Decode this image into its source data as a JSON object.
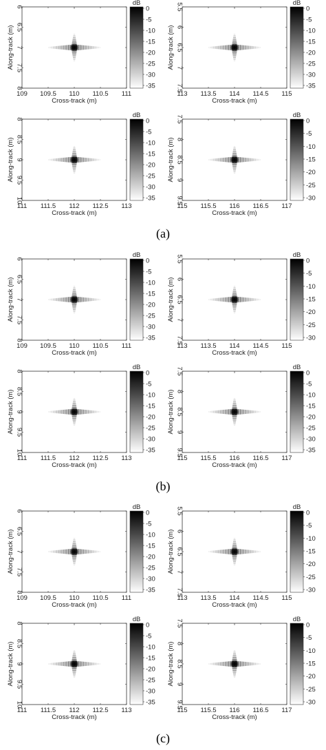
{
  "groups": [
    {
      "label": "(a)",
      "panels": [
        {
          "xlabel": "Cross-track (m)",
          "ylabel": "Along-track (m)",
          "xticks": [
            "109",
            "109.5",
            "110",
            "110.5",
            "111"
          ],
          "yticks": [
            "6",
            "6.5",
            "7",
            "7.5",
            "8"
          ],
          "cbar_title": "dB",
          "cbar_ticks": [
            "0",
            "-5",
            "-10",
            "-15",
            "-20",
            "-25",
            "-30",
            "-35"
          ]
        },
        {
          "xlabel": "Cross-track (m)",
          "ylabel": "Along-track (m)",
          "xticks": [
            "113",
            "113.5",
            "114",
            "114.5",
            "115"
          ],
          "yticks": [
            "5.5",
            "6",
            "6.5",
            "7",
            "7.5"
          ],
          "cbar_title": "dB",
          "cbar_ticks": [
            "0",
            "-5",
            "-10",
            "-15",
            "-20",
            "-25",
            "-30",
            "-35"
          ]
        },
        {
          "xlabel": "Cross-track (m)",
          "ylabel": "Along-track (m)",
          "xticks": [
            "111",
            "111.5",
            "112",
            "112.5",
            "113"
          ],
          "yticks": [
            "8",
            "8.5",
            "9",
            "9.5",
            "10"
          ],
          "cbar_title": "dB",
          "cbar_ticks": [
            "0",
            "-5",
            "-10",
            "-15",
            "-20",
            "-25",
            "-30",
            "-35"
          ]
        },
        {
          "xlabel": "Cross-track (m)",
          "ylabel": "Along-track (m)",
          "xticks": [
            "115",
            "115.5",
            "116",
            "116.5",
            "117"
          ],
          "yticks": [
            "7.5",
            "8",
            "8.5",
            "9",
            "9.5"
          ],
          "cbar_title": "dB",
          "cbar_ticks": [
            "0",
            "-5",
            "-10",
            "-15",
            "-20",
            "-25",
            "-30"
          ]
        }
      ]
    },
    {
      "label": "(b)",
      "panels": [
        {
          "xlabel": "Cross-track (m)",
          "ylabel": "Along-track (m)",
          "xticks": [
            "109",
            "109.5",
            "110",
            "110.5",
            "111"
          ],
          "yticks": [
            "6",
            "6.5",
            "7",
            "7.5",
            "8"
          ],
          "cbar_title": "dB",
          "cbar_ticks": [
            "0",
            "-5",
            "-10",
            "-15",
            "-20",
            "-25",
            "-30",
            "-35"
          ]
        },
        {
          "xlabel": "Cross-track (m)",
          "ylabel": "Along-track (m)",
          "xticks": [
            "113",
            "113.5",
            "114",
            "114.5",
            "115"
          ],
          "yticks": [
            "5.5",
            "6",
            "6.5",
            "7",
            "7.5"
          ],
          "cbar_title": "dB",
          "cbar_ticks": [
            "0",
            "-5",
            "-10",
            "-15",
            "-20",
            "-25",
            "-30"
          ]
        },
        {
          "xlabel": "Cross-track (m)",
          "ylabel": "Along-track (m)",
          "xticks": [
            "111",
            "111.5",
            "112",
            "112.5",
            "113"
          ],
          "yticks": [
            "8",
            "8.5",
            "9",
            "9.5",
            "10"
          ],
          "cbar_title": "dB",
          "cbar_ticks": [
            "0",
            "-5",
            "-10",
            "-15",
            "-20",
            "-25",
            "-30",
            "-35"
          ]
        },
        {
          "xlabel": "Cross-track (m)",
          "ylabel": "Along-track (m)",
          "xticks": [
            "115",
            "115.5",
            "116",
            "116.5",
            "117"
          ],
          "yticks": [
            "7.5",
            "8",
            "8.5",
            "9",
            "9.5"
          ],
          "cbar_title": "dB",
          "cbar_ticks": [
            "0",
            "-5",
            "-10",
            "-15",
            "-20",
            "-25",
            "-30",
            "-35"
          ]
        }
      ]
    },
    {
      "label": "(c)",
      "panels": [
        {
          "xlabel": "Cross-track (m)",
          "ylabel": "Along-track (m)",
          "xticks": [
            "109",
            "109.5",
            "110",
            "110.5",
            "111"
          ],
          "yticks": [
            "6",
            "6.5",
            "7",
            "7.5",
            "8"
          ],
          "cbar_title": "dB",
          "cbar_ticks": [
            "0",
            "-5",
            "-10",
            "-15",
            "-20",
            "-25",
            "-30",
            "-35"
          ]
        },
        {
          "xlabel": "Cross-track (m)",
          "ylabel": "Along-track (m)",
          "xticks": [
            "113",
            "113.5",
            "114",
            "114.5",
            "115"
          ],
          "yticks": [
            "5.5",
            "6",
            "6.5",
            "7",
            "7.5"
          ],
          "cbar_title": "dB",
          "cbar_ticks": [
            "0",
            "-5",
            "-10",
            "-15",
            "-20",
            "-25",
            "-30"
          ]
        },
        {
          "xlabel": "Cross-track (m)",
          "ylabel": "Along-track (m)",
          "xticks": [
            "111",
            "111.5",
            "112",
            "112.5",
            "113"
          ],
          "yticks": [
            "8",
            "8.5",
            "9",
            "9.5",
            "10"
          ],
          "cbar_title": "dB",
          "cbar_ticks": [
            "0",
            "-5",
            "-10",
            "-15",
            "-20",
            "-25",
            "-30",
            "-35"
          ]
        },
        {
          "xlabel": "Cross-track (m)",
          "ylabel": "Along-track (m)",
          "xticks": [
            "115",
            "115.5",
            "116",
            "116.5",
            "117"
          ],
          "yticks": [
            "7.5",
            "8",
            "8.5",
            "9",
            "9.5"
          ],
          "cbar_title": "dB",
          "cbar_ticks": [
            "0",
            "-5",
            "-10",
            "-15",
            "-20",
            "-25",
            "-30"
          ]
        }
      ]
    }
  ],
  "chart_data": [
    {
      "type": "heatmap",
      "group": "(a)",
      "xlabel": "Cross-track (m)",
      "ylabel": "Along-track (m)",
      "xlim": [
        109,
        111
      ],
      "ylim": [
        6,
        8
      ],
      "y_reversed": true,
      "target": [
        110,
        7
      ],
      "colorbar": {
        "label": "dB",
        "range": [
          -35,
          0
        ],
        "colormap": "gray-reversed"
      }
    },
    {
      "type": "heatmap",
      "group": "(a)",
      "xlabel": "Cross-track (m)",
      "ylabel": "Along-track (m)",
      "xlim": [
        113,
        115
      ],
      "ylim": [
        5.5,
        7.5
      ],
      "y_reversed": true,
      "target": [
        114,
        6.5
      ],
      "colorbar": {
        "label": "dB",
        "range": [
          -35,
          0
        ],
        "colormap": "gray-reversed"
      }
    },
    {
      "type": "heatmap",
      "group": "(a)",
      "xlabel": "Cross-track (m)",
      "ylabel": "Along-track (m)",
      "xlim": [
        111,
        113
      ],
      "ylim": [
        8,
        10
      ],
      "y_reversed": true,
      "target": [
        112,
        9
      ],
      "colorbar": {
        "label": "dB",
        "range": [
          -35,
          0
        ],
        "colormap": "gray-reversed"
      }
    },
    {
      "type": "heatmap",
      "group": "(a)",
      "xlabel": "Cross-track (m)",
      "ylabel": "Along-track (m)",
      "xlim": [
        115,
        117
      ],
      "ylim": [
        7.5,
        9.5
      ],
      "y_reversed": true,
      "target": [
        116,
        8.5
      ],
      "colorbar": {
        "label": "dB",
        "range": [
          -30,
          0
        ],
        "colormap": "gray-reversed"
      }
    },
    {
      "type": "heatmap",
      "group": "(b)",
      "xlabel": "Cross-track (m)",
      "ylabel": "Along-track (m)",
      "xlim": [
        109,
        111
      ],
      "ylim": [
        6,
        8
      ],
      "y_reversed": true,
      "target": [
        110,
        7
      ],
      "colorbar": {
        "label": "dB",
        "range": [
          -35,
          0
        ],
        "colormap": "gray-reversed"
      }
    },
    {
      "type": "heatmap",
      "group": "(b)",
      "xlabel": "Cross-track (m)",
      "ylabel": "Along-track (m)",
      "xlim": [
        113,
        115
      ],
      "ylim": [
        5.5,
        7.5
      ],
      "y_reversed": true,
      "target": [
        114,
        6.5
      ],
      "colorbar": {
        "label": "dB",
        "range": [
          -30,
          0
        ],
        "colormap": "gray-reversed"
      }
    },
    {
      "type": "heatmap",
      "group": "(b)",
      "xlabel": "Cross-track (m)",
      "ylabel": "Along-track (m)",
      "xlim": [
        111,
        113
      ],
      "ylim": [
        8,
        10
      ],
      "y_reversed": true,
      "target": [
        112,
        9
      ],
      "colorbar": {
        "label": "dB",
        "range": [
          -35,
          0
        ],
        "colormap": "gray-reversed"
      }
    },
    {
      "type": "heatmap",
      "group": "(b)",
      "xlabel": "Cross-track (m)",
      "ylabel": "Along-track (m)",
      "xlim": [
        115,
        117
      ],
      "ylim": [
        7.5,
        9.5
      ],
      "y_reversed": true,
      "target": [
        116,
        8.5
      ],
      "colorbar": {
        "label": "dB",
        "range": [
          -35,
          0
        ],
        "colormap": "gray-reversed"
      }
    },
    {
      "type": "heatmap",
      "group": "(c)",
      "xlabel": "Cross-track (m)",
      "ylabel": "Along-track (m)",
      "xlim": [
        109,
        111
      ],
      "ylim": [
        6,
        8
      ],
      "y_reversed": true,
      "target": [
        110,
        7
      ],
      "colorbar": {
        "label": "dB",
        "range": [
          -35,
          0
        ],
        "colormap": "gray-reversed"
      }
    },
    {
      "type": "heatmap",
      "group": "(c)",
      "xlabel": "Cross-track (m)",
      "ylabel": "Along-track (m)",
      "xlim": [
        113,
        115
      ],
      "ylim": [
        5.5,
        7.5
      ],
      "y_reversed": true,
      "target": [
        114,
        6.5
      ],
      "colorbar": {
        "label": "dB",
        "range": [
          -30,
          0
        ],
        "colormap": "gray-reversed"
      }
    },
    {
      "type": "heatmap",
      "group": "(c)",
      "xlabel": "Cross-track (m)",
      "ylabel": "Along-track (m)",
      "xlim": [
        111,
        113
      ],
      "ylim": [
        8,
        10
      ],
      "y_reversed": true,
      "target": [
        112,
        9
      ],
      "colorbar": {
        "label": "dB",
        "range": [
          -35,
          0
        ],
        "colormap": "gray-reversed"
      }
    },
    {
      "type": "heatmap",
      "group": "(c)",
      "xlabel": "Cross-track (m)",
      "ylabel": "Along-track (m)",
      "xlim": [
        115,
        117
      ],
      "ylim": [
        7.5,
        9.5
      ],
      "y_reversed": true,
      "target": [
        116,
        8.5
      ],
      "colorbar": {
        "label": "dB",
        "range": [
          -30,
          0
        ],
        "colormap": "gray-reversed"
      }
    }
  ]
}
